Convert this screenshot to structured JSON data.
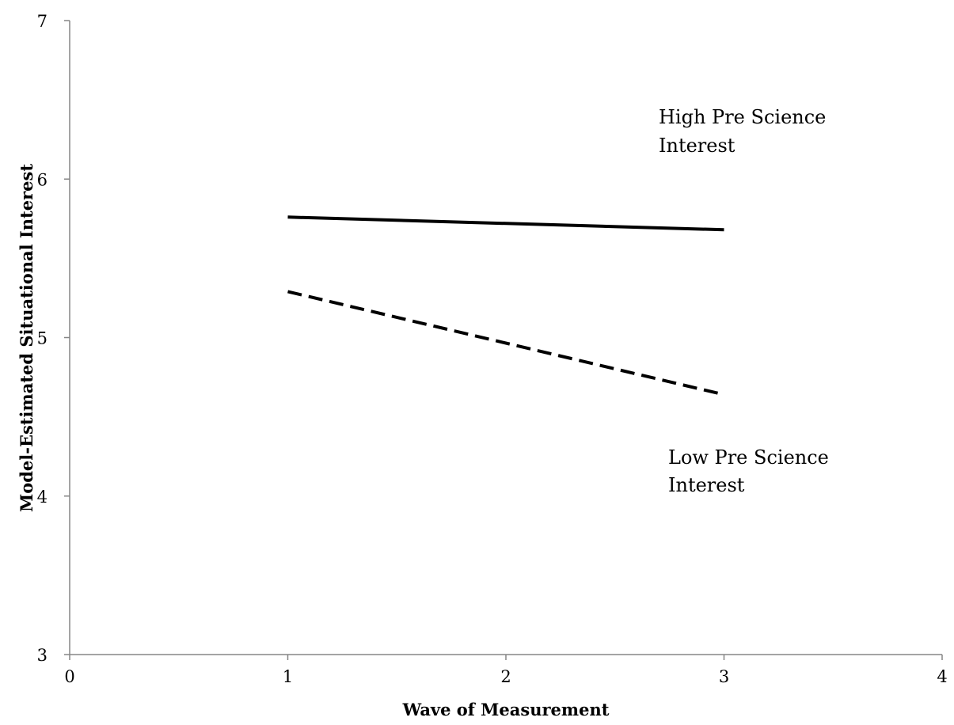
{
  "chart_data": {
    "type": "line",
    "title": "",
    "xlabel": "Wave of Measurement",
    "ylabel": "Model-Estimated Situational Interest",
    "xlim": [
      0,
      4
    ],
    "ylim": [
      3,
      7
    ],
    "xticks": [
      0,
      1,
      2,
      3,
      4
    ],
    "yticks": [
      3,
      4,
      5,
      6,
      7
    ],
    "grid": false,
    "legend": "none",
    "x": [
      1,
      3
    ],
    "series": [
      {
        "values": [
          5.76,
          5.68
        ],
        "color": "#000000",
        "style": "solid"
      },
      {
        "values": [
          5.29,
          4.64
        ],
        "color": "#000000",
        "style": "dashed"
      }
    ],
    "annotations": [
      {
        "lines": [
          "High Pre Science",
          "Interest"
        ]
      },
      {
        "lines": [
          "Low Pre Science",
          "Interest"
        ]
      }
    ]
  }
}
